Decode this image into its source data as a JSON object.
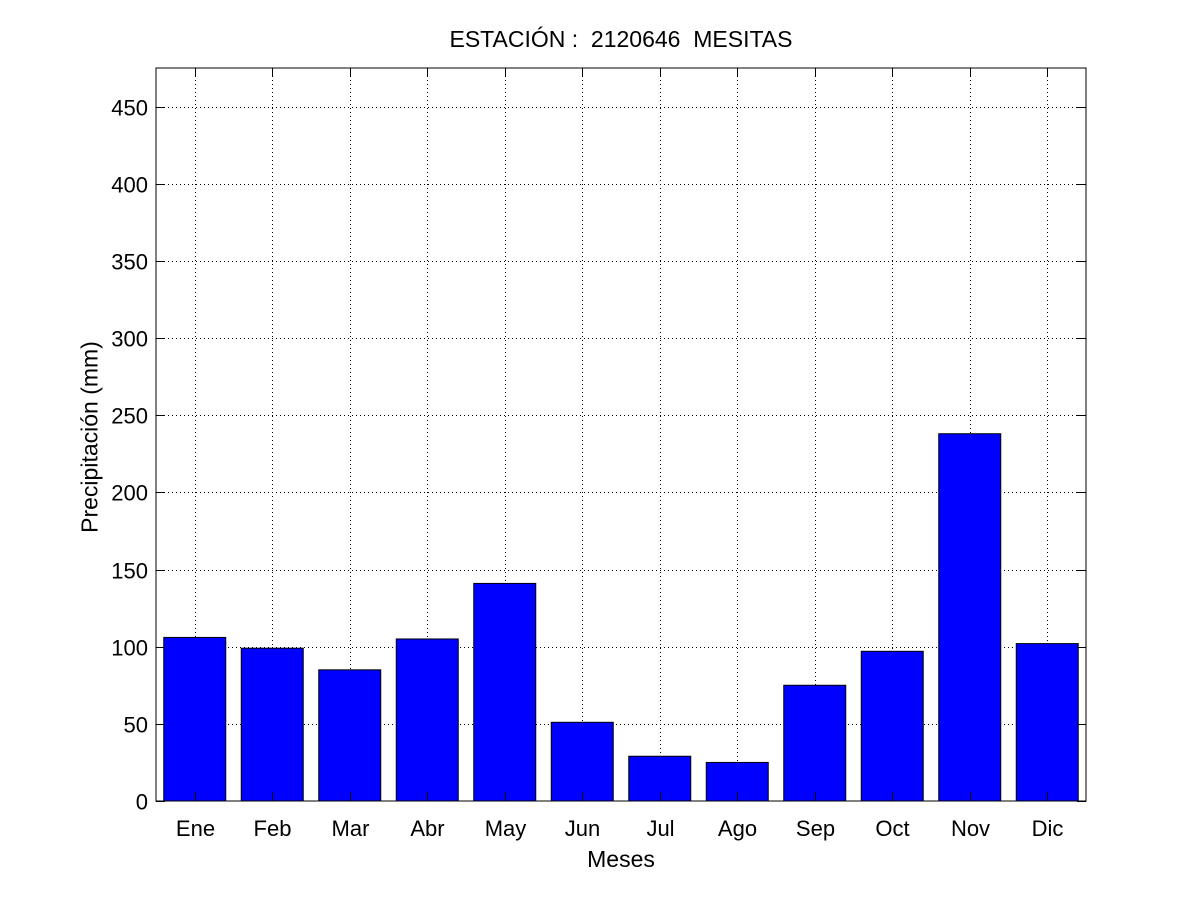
{
  "chart_data": {
    "type": "bar",
    "title": "ESTACIÓN :  2120646  MESITAS",
    "xlabel": "Meses",
    "ylabel": "Precipitación (mm)",
    "categories": [
      "Ene",
      "Feb",
      "Mar",
      "Abr",
      "May",
      "Jun",
      "Jul",
      "Ago",
      "Sep",
      "Oct",
      "Nov",
      "Dic"
    ],
    "values": [
      106,
      99,
      85,
      105,
      141,
      51,
      29,
      25,
      75,
      97,
      238,
      102
    ],
    "ylim": [
      0,
      475
    ],
    "yticks": [
      0,
      50,
      100,
      150,
      200,
      250,
      300,
      350,
      400,
      450
    ],
    "grid": true,
    "bar_color": "#0000ff",
    "edge_color": "#000000"
  }
}
